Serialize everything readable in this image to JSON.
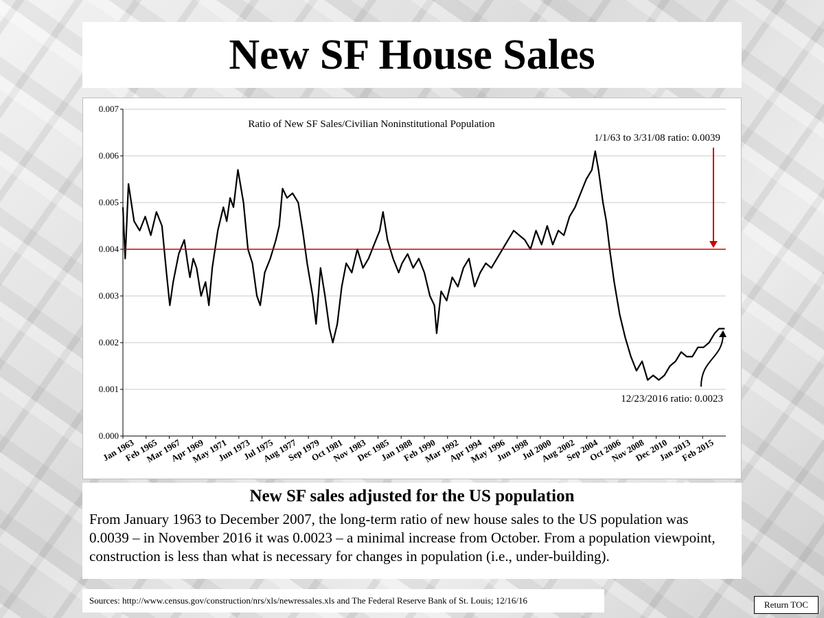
{
  "slide": {
    "title": "New SF House Sales",
    "subtitle": "New SF sales adjusted for the US population",
    "body": "From January 1963 to December 2007, the long-term ratio of new house sales to the US population was 0.0039 – in November 2016 it was 0.0023 – a minimal increase from October.  From a population viewpoint, construction is less than what is necessary for changes in population (i.e., under-building).",
    "sources": "Sources: http://www.census.gov/construction/nrs/xls/newressales.xls and The Federal Reserve Bank of St. Louis; 12/16/16",
    "toc_button": "Return TOC"
  },
  "chart_data": {
    "type": "line",
    "title": "Ratio of New SF Sales/Civilian Noninstitutional Population",
    "xlabel": "",
    "ylabel": "",
    "ylim": [
      0,
      0.007
    ],
    "yticks": [
      "0.000",
      "0.001",
      "0.002",
      "0.003",
      "0.004",
      "0.005",
      "0.006",
      "0.007"
    ],
    "xlim": [
      1963.0,
      2017.0
    ],
    "xticks": [
      "Jan 1963",
      "Feb 1965",
      "Mar 1967",
      "Apr 1969",
      "May 1971",
      "Jun 1973",
      "Jul 1975",
      "Aug 1977",
      "Sep 1979",
      "Oct 1981",
      "Nov 1983",
      "Dec 1985",
      "Jan 1988",
      "Feb 1990",
      "Mar 1992",
      "Apr 1994",
      "May 1996",
      "Jun 1998",
      "Jul 2000",
      "Aug 2002",
      "Sep 2004",
      "Oct 2006",
      "Nov 2008",
      "Dec 2010",
      "Jan 2013",
      "Feb 2015"
    ],
    "grid": "horizontal",
    "series": [
      {
        "color": "#000000",
        "x": [
          1963.0,
          1963.2,
          1963.5,
          1964.0,
          1964.5,
          1965.0,
          1965.5,
          1966.0,
          1966.5,
          1966.9,
          1967.2,
          1967.5,
          1968.0,
          1968.5,
          1968.8,
          1969.0,
          1969.3,
          1969.6,
          1970.0,
          1970.4,
          1970.7,
          1971.0,
          1971.5,
          1972.0,
          1972.3,
          1972.6,
          1972.9,
          1973.3,
          1973.8,
          1974.2,
          1974.6,
          1975.0,
          1975.3,
          1975.7,
          1976.2,
          1976.7,
          1977.0,
          1977.3,
          1977.7,
          1978.2,
          1978.7,
          1979.1,
          1979.5,
          1980.0,
          1980.3,
          1980.7,
          1981.1,
          1981.5,
          1981.8,
          1982.2,
          1982.6,
          1983.0,
          1983.5,
          1984.0,
          1984.5,
          1985.0,
          1985.5,
          1986.0,
          1986.3,
          1986.7,
          1987.2,
          1987.7,
          1988.0,
          1988.5,
          1989.0,
          1989.5,
          1990.0,
          1990.5,
          1990.9,
          1991.1,
          1991.5,
          1992.0,
          1992.5,
          1993.0,
          1993.5,
          1994.0,
          1994.5,
          1995.0,
          1995.5,
          1996.0,
          1996.5,
          1997.0,
          1997.5,
          1998.0,
          1998.5,
          1999.0,
          1999.5,
          2000.0,
          2000.5,
          2001.0,
          2001.5,
          2002.0,
          2002.5,
          2003.0,
          2003.5,
          2004.0,
          2004.5,
          2005.0,
          2005.3,
          2005.6,
          2006.0,
          2006.3,
          2006.6,
          2007.0,
          2007.5,
          2008.0,
          2008.5,
          2009.0,
          2009.5,
          2010.0,
          2010.5,
          2011.0,
          2011.5,
          2012.0,
          2012.5,
          2013.0,
          2013.5,
          2014.0,
          2014.5,
          2015.0,
          2015.5,
          2016.0,
          2016.4,
          2016.9
        ],
        "y": [
          0.0049,
          0.0038,
          0.0054,
          0.0046,
          0.0044,
          0.0047,
          0.0043,
          0.0048,
          0.0045,
          0.0035,
          0.0028,
          0.0033,
          0.0039,
          0.0042,
          0.0037,
          0.0034,
          0.0038,
          0.0036,
          0.003,
          0.0033,
          0.0028,
          0.0036,
          0.0044,
          0.0049,
          0.0046,
          0.0051,
          0.0049,
          0.0057,
          0.005,
          0.004,
          0.0037,
          0.003,
          0.0028,
          0.0035,
          0.0038,
          0.0042,
          0.0045,
          0.0053,
          0.0051,
          0.0052,
          0.005,
          0.0044,
          0.0037,
          0.003,
          0.0024,
          0.0036,
          0.003,
          0.0023,
          0.002,
          0.0024,
          0.0032,
          0.0037,
          0.0035,
          0.004,
          0.0036,
          0.0038,
          0.0041,
          0.0044,
          0.0048,
          0.0042,
          0.0038,
          0.0035,
          0.0037,
          0.0039,
          0.0036,
          0.0038,
          0.0035,
          0.003,
          0.0028,
          0.0022,
          0.0031,
          0.0029,
          0.0034,
          0.0032,
          0.0036,
          0.0038,
          0.0032,
          0.0035,
          0.0037,
          0.0036,
          0.0038,
          0.004,
          0.0042,
          0.0044,
          0.0043,
          0.0042,
          0.004,
          0.0044,
          0.0041,
          0.0045,
          0.0041,
          0.0044,
          0.0043,
          0.0047,
          0.0049,
          0.0052,
          0.0055,
          0.0057,
          0.0061,
          0.0057,
          0.005,
          0.0046,
          0.004,
          0.0033,
          0.0026,
          0.0021,
          0.0017,
          0.0014,
          0.0016,
          0.0012,
          0.0013,
          0.0012,
          0.0013,
          0.0015,
          0.0016,
          0.0018,
          0.0017,
          0.0017,
          0.0019,
          0.0019,
          0.002,
          0.0022,
          0.0023,
          0.0023
        ]
      },
      {
        "color": "#cc0000",
        "x": [
          1963.0,
          2017.0
        ],
        "y": [
          0.004,
          0.004
        ]
      }
    ],
    "annotations": [
      {
        "text": "1/1/63 to 3/31/08 ratio: 0.0039"
      },
      {
        "text": "12/23/2016 ratio: 0.0023"
      }
    ]
  }
}
